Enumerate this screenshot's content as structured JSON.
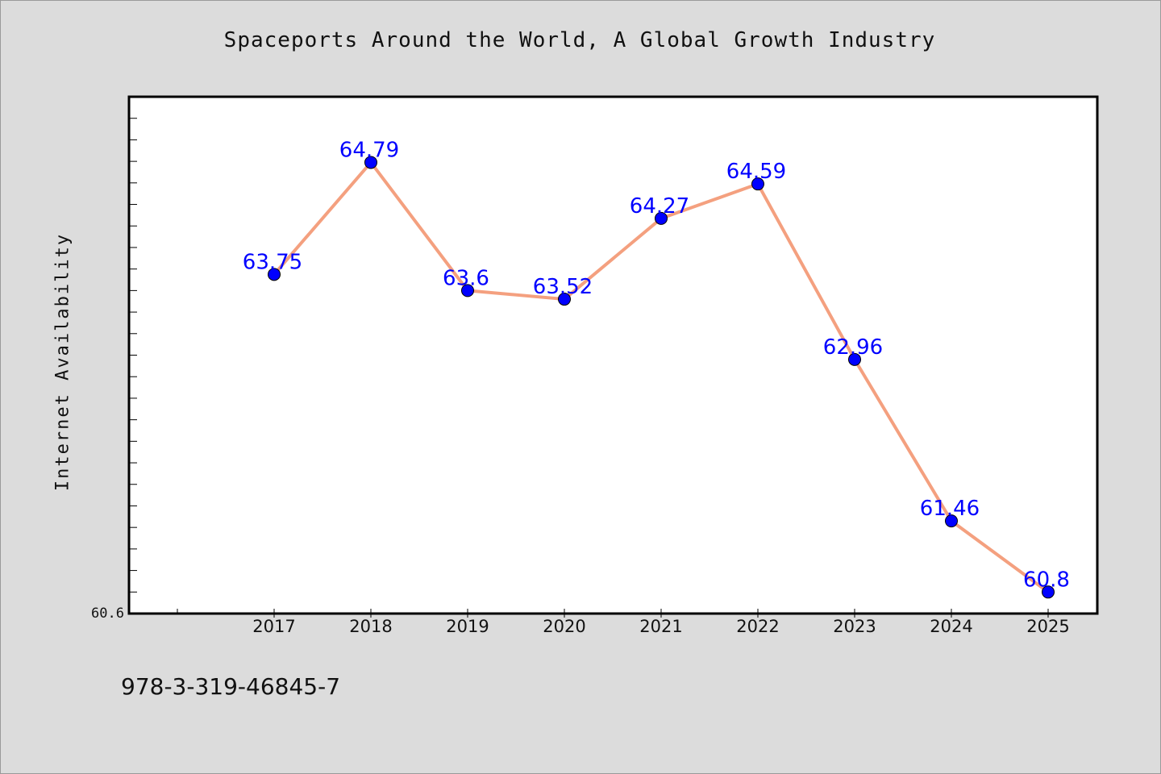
{
  "chart_data": {
    "type": "line",
    "title": "Spaceports Around the World, A Global Growth Industry",
    "xlabel": "",
    "ylabel": "Internet Availability",
    "categories": [
      "2017",
      "2018",
      "2019",
      "2020",
      "2021",
      "2022",
      "2023",
      "2024",
      "2025"
    ],
    "series": [
      {
        "values": [
          63.75,
          64.79,
          63.6,
          63.52,
          64.27,
          64.59,
          62.96,
          61.46,
          60.8
        ],
        "labels": [
          "63.75",
          "64.79",
          "63.6",
          "63.52",
          "64.27",
          "64.59",
          "62.96",
          "61.46",
          "60.8"
        ]
      }
    ],
    "y_tick_labels": [
      "60.6"
    ],
    "ylim": [
      60.6,
      65.4
    ],
    "grid": false,
    "legend": "none",
    "colors": {
      "line": "#f4a07f",
      "marker": "#0000ff",
      "data_label": "#0000ff",
      "background": "#dcdcdc",
      "plot_background": "#ffffff"
    }
  },
  "footer": {
    "text": "978-3-319-46845-7"
  }
}
